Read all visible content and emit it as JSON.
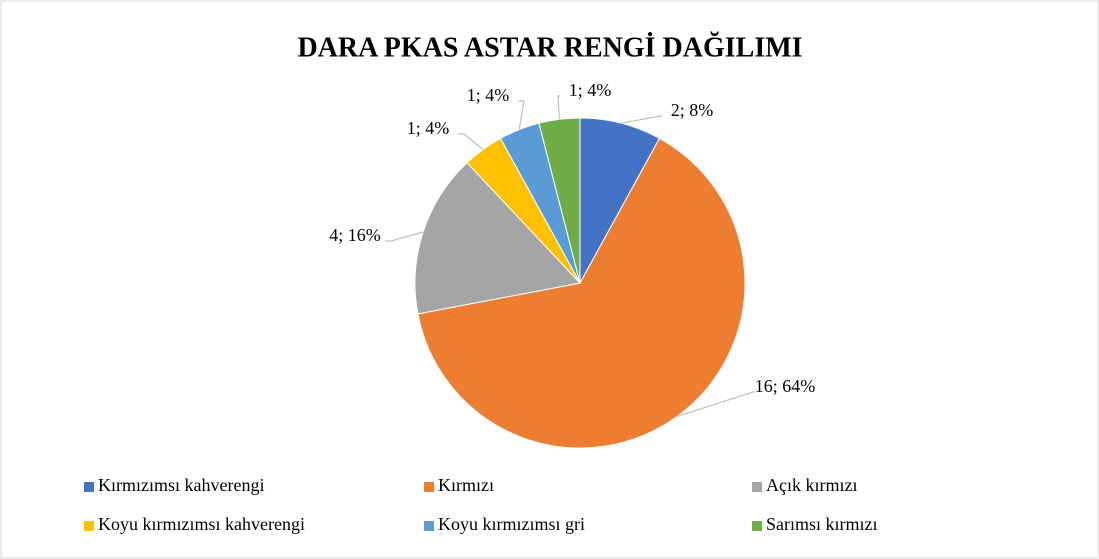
{
  "chart_data": {
    "type": "pie",
    "title": "DARA PKAS ASTAR RENGİ DAĞILIMI",
    "categories": [
      "Kırmızımsı kahverengi",
      "Kırmızı",
      "Açık kırmızı",
      "Koyu kırmızımsı kahverengi",
      "Koyu kırmızımsı gri",
      "Sarımsı kırmızı"
    ],
    "values": [
      2,
      16,
      4,
      1,
      1,
      1
    ],
    "value_labels": [
      "2; 8%",
      "16; 64%",
      "4; 16%",
      "1; 4%",
      "1; 4%",
      "1; 4%"
    ],
    "colors": [
      "#4472c4",
      "#ed7d31",
      "#a5a5a5",
      "#ffc000",
      "#5b9bd5",
      "#70ad47"
    ],
    "legend": "bottom"
  }
}
